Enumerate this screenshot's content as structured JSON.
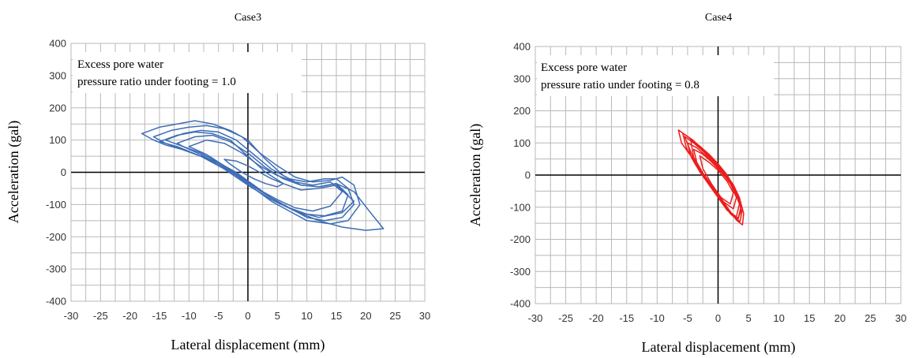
{
  "chart_data": [
    {
      "type": "line",
      "title": "Case3",
      "xlabel": "Lateral displacement (mm)",
      "ylabel": "Acceleration (gal)",
      "xlim": [
        -30,
        30
      ],
      "ylim": [
        -400,
        400
      ],
      "x_ticks": [
        -30,
        -25,
        -20,
        -15,
        -10,
        -5,
        0,
        5,
        10,
        15,
        20,
        25,
        30
      ],
      "y_ticks": [
        400,
        300,
        200,
        100,
        0,
        -100,
        -200,
        -300,
        -400
      ],
      "grid": true,
      "annotation_lines": [
        "Excess pore water",
        "pressure ratio under footing = 1.0"
      ],
      "series_color": "#3d6db5",
      "series": [
        {
          "x": [
            -18,
            -15,
            -12,
            -9,
            -6,
            -3,
            0,
            3,
            6,
            9,
            12,
            15,
            18,
            21,
            23,
            20,
            16,
            12,
            8,
            4,
            1,
            -2,
            -5,
            -8,
            -11,
            -14,
            -16,
            -18
          ],
          "y": [
            120,
            140,
            150,
            160,
            150,
            130,
            100,
            40,
            -10,
            -40,
            -45,
            -35,
            -60,
            -130,
            -175,
            -180,
            -170,
            -150,
            -120,
            -80,
            -40,
            0,
            30,
            50,
            70,
            85,
            100,
            120
          ]
        },
        {
          "x": [
            -16,
            -13,
            -10,
            -7,
            -4,
            -1,
            2,
            5,
            8,
            11,
            14,
            16,
            18,
            19,
            17,
            14,
            10,
            7,
            4,
            1,
            -2,
            -5,
            -8,
            -11,
            -14,
            -16
          ],
          "y": [
            110,
            130,
            140,
            145,
            135,
            110,
            60,
            20,
            -15,
            -30,
            -25,
            -15,
            -40,
            -100,
            -150,
            -160,
            -150,
            -120,
            -90,
            -50,
            -10,
            25,
            50,
            70,
            90,
            110
          ]
        },
        {
          "x": [
            -14,
            -11,
            -8,
            -5,
            -2,
            1,
            4,
            7,
            10,
            13,
            15,
            17,
            18,
            16,
            13,
            10,
            7,
            4,
            1,
            -2,
            -5,
            -8,
            -11,
            -14
          ],
          "y": [
            100,
            120,
            130,
            125,
            100,
            55,
            10,
            -20,
            -30,
            -20,
            -20,
            -50,
            -100,
            -140,
            -150,
            -140,
            -110,
            -80,
            -40,
            -5,
            25,
            55,
            80,
            100
          ]
        },
        {
          "x": [
            -12,
            -9,
            -6,
            -3,
            0,
            3,
            6,
            9,
            12,
            15,
            17,
            16,
            13,
            10,
            7,
            4,
            1,
            -2,
            -5,
            -8,
            -11,
            -12
          ],
          "y": [
            90,
            110,
            115,
            95,
            60,
            15,
            -20,
            -40,
            -45,
            -35,
            -70,
            -120,
            -135,
            -130,
            -110,
            -80,
            -45,
            -5,
            30,
            60,
            80,
            90
          ]
        },
        {
          "x": [
            -15,
            -12,
            -9,
            -6,
            -3,
            0,
            3,
            6,
            9,
            12,
            15,
            18,
            16,
            12,
            8,
            4,
            0,
            -4,
            -8,
            -12,
            -15
          ],
          "y": [
            95,
            115,
            125,
            120,
            100,
            50,
            0,
            -35,
            -55,
            -50,
            -40,
            -90,
            -125,
            -140,
            -120,
            -85,
            -40,
            10,
            50,
            80,
            95
          ]
        },
        {
          "x": [
            -10,
            -7,
            -4,
            -1,
            2,
            5,
            8,
            11,
            14,
            16,
            14,
            11,
            8,
            5,
            2,
            -1,
            -4,
            -7,
            -10
          ],
          "y": [
            80,
            100,
            90,
            60,
            20,
            -10,
            -30,
            -40,
            -30,
            -60,
            -105,
            -120,
            -110,
            -85,
            -55,
            -20,
            20,
            55,
            80
          ]
        },
        {
          "x": [
            -4,
            -2,
            0,
            2,
            4,
            6,
            5,
            3,
            1,
            -1,
            -3,
            -4
          ],
          "y": [
            40,
            35,
            20,
            0,
            -20,
            -35,
            -45,
            -35,
            -20,
            0,
            25,
            40
          ]
        }
      ]
    },
    {
      "type": "line",
      "title": "Case4",
      "xlabel": "Lateral displacement (mm)",
      "ylabel": "Acceleration (gal)",
      "xlim": [
        -30,
        30
      ],
      "ylim": [
        -400,
        400
      ],
      "x_ticks": [
        -30,
        -25,
        -20,
        -15,
        -10,
        -5,
        0,
        5,
        10,
        15,
        20,
        25,
        30
      ],
      "y_ticks": [
        400,
        300,
        200,
        100,
        0,
        -100,
        -200,
        -300,
        -400
      ],
      "grid": true,
      "annotation_lines": [
        "Excess pore water",
        "pressure ratio under footing = 0.8"
      ],
      "series_color": "#ee1c1c",
      "series": [
        {
          "x": [
            -6.5,
            -5,
            -3.5,
            -2,
            -0.5,
            1,
            2.5,
            3.5,
            4.2,
            4,
            3,
            1.5,
            0,
            -1.5,
            -3,
            -4.5,
            -6,
            -6.5
          ],
          "y": [
            140,
            120,
            95,
            70,
            40,
            10,
            -30,
            -70,
            -120,
            -155,
            -140,
            -100,
            -60,
            -20,
            20,
            60,
            100,
            140
          ]
        },
        {
          "x": [
            -5.5,
            -4,
            -2.5,
            -1,
            0.5,
            2,
            3.2,
            3.8,
            3.2,
            2,
            0.5,
            -1,
            -2.5,
            -4,
            -5.5
          ],
          "y": [
            120,
            100,
            75,
            45,
            15,
            -20,
            -60,
            -110,
            -140,
            -120,
            -80,
            -40,
            0,
            50,
            120
          ]
        },
        {
          "x": [
            -5,
            -3.5,
            -2,
            -0.5,
            1,
            2.5,
            3.5,
            3,
            1.5,
            0,
            -1.5,
            -3,
            -4.5,
            -5
          ],
          "y": [
            100,
            85,
            60,
            30,
            0,
            -40,
            -90,
            -130,
            -110,
            -70,
            -30,
            10,
            60,
            100
          ]
        },
        {
          "x": [
            -4,
            -2.5,
            -1,
            0.5,
            2,
            3,
            2.5,
            1,
            -0.5,
            -2,
            -3.5,
            -4
          ],
          "y": [
            80,
            65,
            40,
            10,
            -25,
            -70,
            -105,
            -85,
            -50,
            -10,
            40,
            80
          ]
        },
        {
          "x": [
            -4.5,
            -3,
            -1.5,
            0,
            1.5,
            2.8,
            3.8,
            3.3,
            2,
            0.5,
            -1,
            -2.5,
            -4,
            -4.5
          ],
          "y": [
            110,
            90,
            65,
            35,
            0,
            -45,
            -95,
            -135,
            -115,
            -75,
            -35,
            5,
            55,
            110
          ]
        },
        {
          "x": [
            -3,
            -1.5,
            0,
            1.5,
            2.5,
            2,
            0.5,
            -1,
            -2.5,
            -3
          ],
          "y": [
            60,
            40,
            15,
            -20,
            -55,
            -90,
            -70,
            -30,
            20,
            60
          ]
        },
        {
          "x": [
            -5.8,
            -4.2,
            -2.8,
            -1.2,
            0.2,
            1.8,
            3,
            4,
            3.6,
            2.4,
            1,
            -0.6,
            -2.2,
            -3.8,
            -5.2,
            -5.8
          ],
          "y": [
            130,
            110,
            85,
            55,
            25,
            -15,
            -55,
            -105,
            -145,
            -125,
            -90,
            -50,
            -10,
            35,
            85,
            130
          ]
        }
      ]
    }
  ]
}
